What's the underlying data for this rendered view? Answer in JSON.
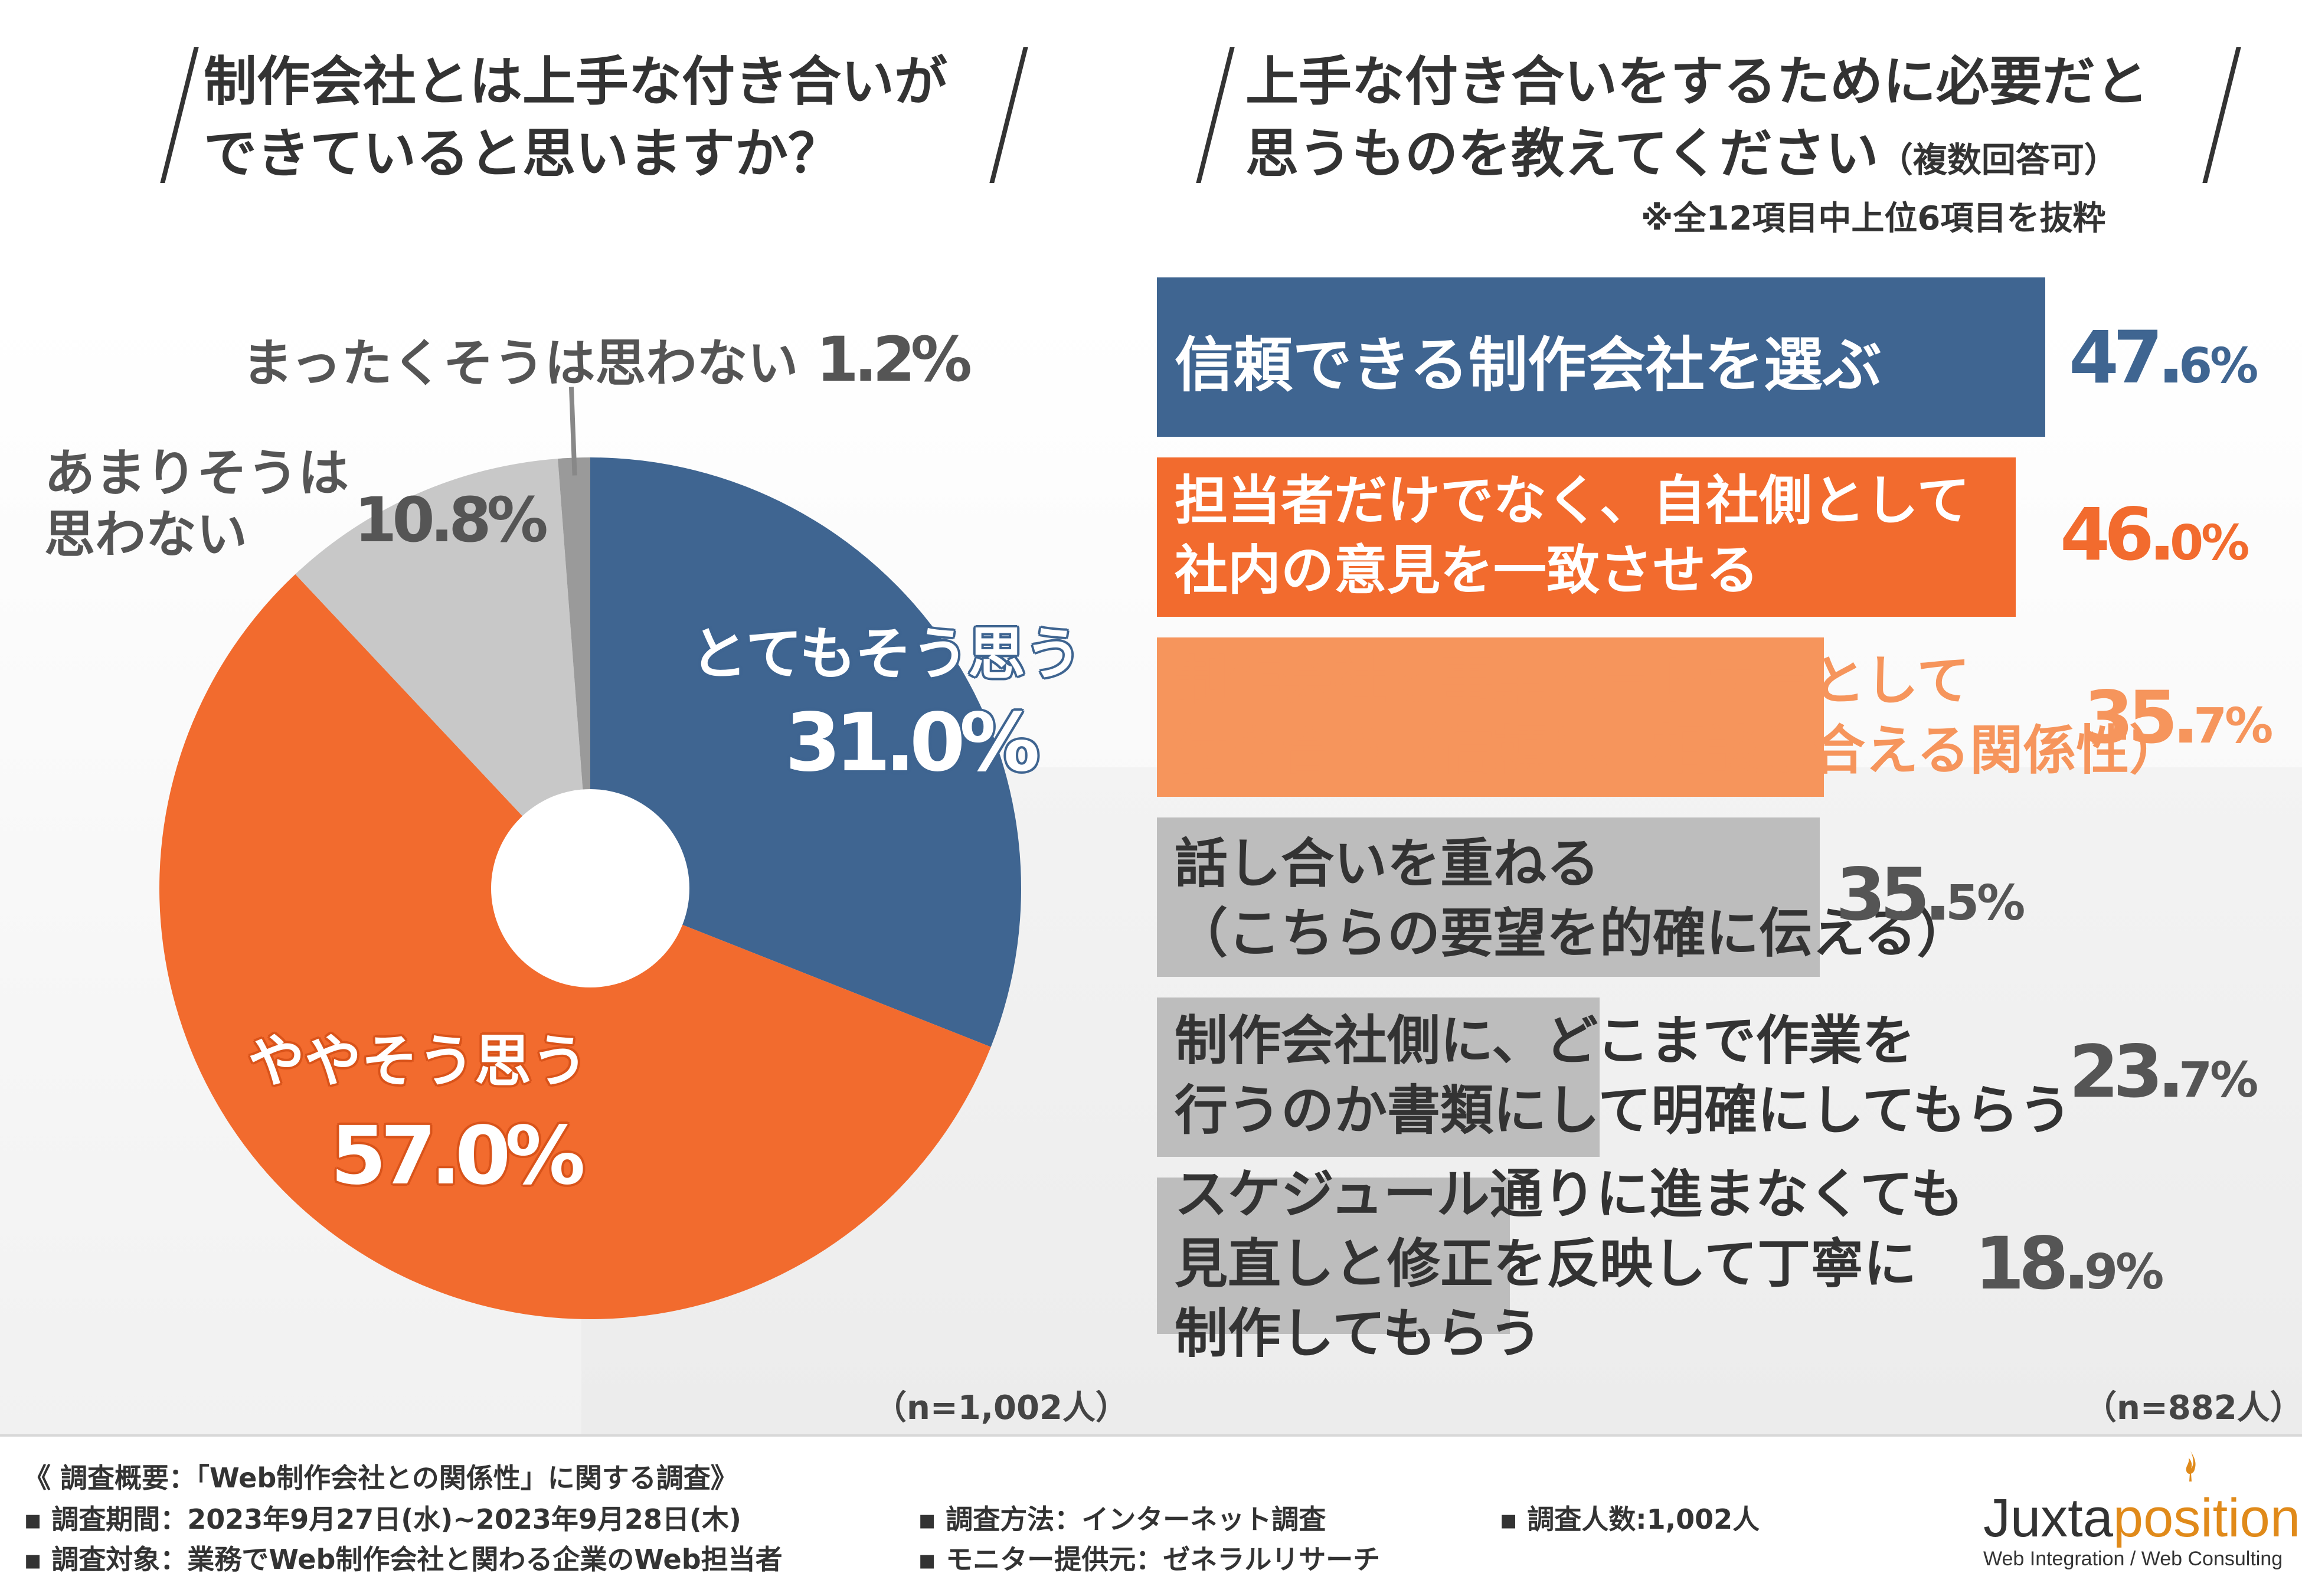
{
  "left": {
    "question": "制作会社とは上手な付き合いが\nできていると思いますか？",
    "n_label": "（n=1,002人）"
  },
  "right": {
    "question": "上手な付き合いをするために必要だと\n思うものを教えてください",
    "question_suffix": "（複数回答可）",
    "note": "※全12項目中上位6項目を抜粋",
    "n_label": "（n=882人）"
  },
  "colors": {
    "blue": "#3f6591",
    "orange": "#f26b2e",
    "light_orange": "#f6955c",
    "gray_light": "#c8c8c8",
    "gray_dark": "#9a9a9a",
    "bar_gray": "#bdbdbd"
  },
  "chart_data": [
    {
      "type": "pie",
      "title": "制作会社とは上手な付き合いができていると思いますか？",
      "slices": [
        {
          "label": "とてもそう思う",
          "value": 31.0,
          "value_text": "31.0%"
        },
        {
          "label": "ややそう思う",
          "value": 57.0,
          "value_text": "57.0%"
        },
        {
          "label": "あまりそうは思わない",
          "value": 10.8,
          "value_text": "10.8%"
        },
        {
          "label": "まったくそうは思わない",
          "value": 1.2,
          "value_text": "1.2%"
        }
      ],
      "donut": true,
      "n": "n=1,002人"
    },
    {
      "type": "bar",
      "orientation": "horizontal",
      "title": "上手な付き合いをするために必要だと思うものを教えてください（複数回答可）",
      "categories": [
        "信頼できる制作会社を選ぶ",
        "担当者だけでなく、自社側として\n社内の意見を一致させる",
        "制作会社と事業パートナーとして\n付き合う（信頼し、相談し合える関係性）",
        "話し合いを重ねる\n（こちらの要望を的確に伝える）",
        "制作会社側に、どこまで作業を\n行うのか書類にして明確にしてもらう",
        "スケジュール通りに進まなくても\n見直しと修正を反映して丁寧に\n制作してもらう"
      ],
      "values": [
        47.6,
        46.0,
        35.7,
        35.5,
        23.7,
        18.9
      ],
      "value_texts": [
        {
          "int": "47.",
          "dec": "6%"
        },
        {
          "int": "46.",
          "dec": "0%"
        },
        {
          "int": "35.",
          "dec": "7%"
        },
        {
          "int": "35.",
          "dec": "5%"
        },
        {
          "int": "23.",
          "dec": "7%"
        },
        {
          "int": "18.",
          "dec": "9%"
        }
      ],
      "xlim": [
        0,
        47.6
      ],
      "n": "n=882人"
    }
  ],
  "footer": {
    "summary": "《 調査概要：「Web制作会社との関係性」に関する調査》",
    "period": "▪ 調査期間：2023年9月27日(水)~2023年9月28日(木)",
    "method": "▪ 調査方法：インターネット調査",
    "count": "▪ 調査人数:1,002人",
    "target": "▪ 調査対象：業務でWeb制作会社と関わる企業のWeb担当者",
    "provider": "▪ モニター提供元：ゼネラルリサーチ"
  },
  "logo": {
    "part1": "Juxta",
    "part2": "position",
    "tagline": "Web Integration / Web Consulting"
  }
}
